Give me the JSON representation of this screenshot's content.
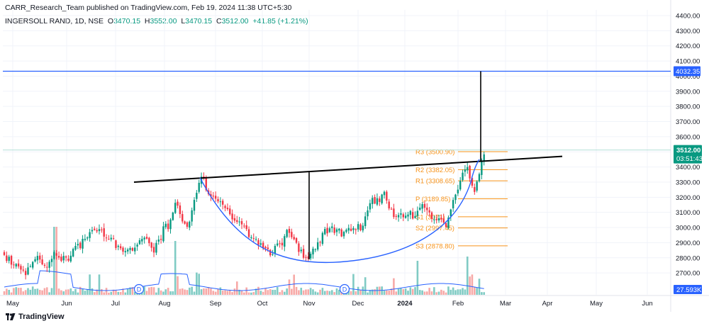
{
  "header": {
    "publisher_line": "CARR_Research_Team published on TradingView.com, Feb 19, 2024 11:38 UTC+5:30"
  },
  "ohlc": {
    "symbol": "INGERSOLL RAND, 1D, NSE",
    "open_label": "O",
    "open": "3470.15",
    "high_label": "H",
    "high": "3552.00",
    "low_label": "L",
    "low": "3470.15",
    "close_label": "C",
    "close": "3512.00",
    "change": "+41.85 (+1.21%)"
  },
  "footer": {
    "brand": "TradingView"
  },
  "colors": {
    "up": "#089981",
    "down": "#f23645",
    "vol_up": "#80cbc4",
    "vol_down": "#f7a9a7",
    "curve": "#2962ff",
    "target_line": "#2962ff",
    "pivot": "#f7931a",
    "grid": "#f0f3fa"
  },
  "chart_data": {
    "type": "candlestick",
    "ylim": [
      2560,
      4430
    ],
    "y_ticks": [
      4400,
      4300,
      4200,
      4100,
      4000,
      3900,
      3800,
      3700,
      3600,
      3500,
      3400,
      3300,
      3200,
      3100,
      3000,
      2900,
      2800,
      2700
    ],
    "y_tick_labels": [
      "4400.00",
      "4300.00",
      "4200.00",
      "4100.00",
      "4000.00",
      "3900.00",
      "3800.00",
      "3700.00",
      "3600.00",
      "3500.00",
      "3400.00",
      "3300.00",
      "3200.00",
      "3100.00",
      "3000.00",
      "2900.00",
      "2800.00",
      "2700.00"
    ],
    "x_ticks": [
      "May",
      "Jun",
      "Jul",
      "Aug",
      "Sep",
      "Oct",
      "Nov",
      "Dec",
      "2024",
      "Feb",
      "Mar",
      "Apr",
      "May",
      "Jun"
    ],
    "x_tick_bold": [
      false,
      false,
      false,
      false,
      false,
      false,
      false,
      false,
      true,
      false,
      false,
      false,
      false,
      false
    ],
    "price_labels": {
      "target": "4032.35",
      "last_price": "3512.00",
      "countdown": "03:51:43",
      "volume": "27.593K"
    },
    "target_level": 4032.35,
    "last_price": 3512,
    "pivot_levels": [
      {
        "label": "R3 (3500.90)",
        "value": 3500.9
      },
      {
        "label": "R2 (3382.05)",
        "value": 3382.05
      },
      {
        "label": "R1 (3308.65)",
        "value": 3308.65
      },
      {
        "label": "P (3189.85)",
        "value": 3189.85
      },
      {
        "label": "S1 (3071)",
        "value": 3071
      },
      {
        "label": "S2 (2997.45)",
        "value": 2997.45
      },
      {
        "label": "S3 (2878.80)",
        "value": 2878.8
      }
    ],
    "dividend_markers": [
      "D",
      "D"
    ],
    "neckline": {
      "from": [
        "Jul",
        3300
      ],
      "to": [
        "Mar",
        3470
      ]
    },
    "cup_depth_line": {
      "x": "Nov",
      "from": 2790,
      "to": 3365
    },
    "target_projection_line": {
      "x": "Feb",
      "from": 3440,
      "to": 4032.35
    },
    "cup_curve": [
      [
        3330
      ],
      [
        2770
      ],
      [
        3450
      ]
    ]
  }
}
